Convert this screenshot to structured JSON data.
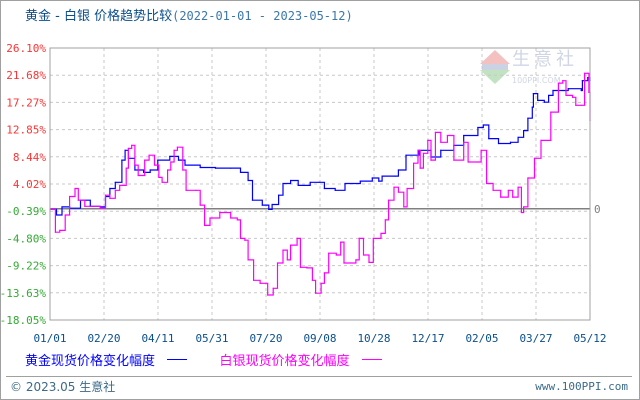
{
  "header": {
    "title": "黄金 - 白银 价格趋势比较",
    "date_range": "(2022-01-01 - 2023-05-12)"
  },
  "watermark": {
    "text": "生意社",
    "sub": "100PPI.COM"
  },
  "legend": [
    {
      "label": "黄金现货价格变化幅度",
      "color": "#0000ff"
    },
    {
      "label": "白银现货价格变化幅度",
      "color": "#ff00ff"
    }
  ],
  "footer": {
    "copyright": "© 2023.05 生意社",
    "site": "www.100PPI.com"
  },
  "chart_data": {
    "type": "line",
    "title": "黄金 - 白银 价格趋势比较",
    "xlim": [
      "2022-01-01",
      "2023-05-12"
    ],
    "ylim": [
      -18.05,
      26.1
    ],
    "x_ticks": [
      "01/01",
      "02/20",
      "04/11",
      "05/31",
      "07/20",
      "09/08",
      "10/28",
      "12/17",
      "02/05",
      "03/27",
      "05/12"
    ],
    "y_ticks": [
      "26.10%",
      "21.68%",
      "17.27%",
      "12.85%",
      "8.44%",
      "4.02%",
      "-0.39%",
      "-4.80%",
      "-9.22%",
      "-13.63%",
      "-18.05%"
    ],
    "zero_label": "0",
    "grid": true,
    "legend_position": "bottom",
    "colors": {
      "positive_tick": "#ff3333",
      "negative_tick": "#33aa33",
      "zero_line": "#808080"
    },
    "series": [
      {
        "name": "黄金现货价格变化幅度",
        "color": "#0000ff",
        "points": [
          [
            "2022-01-01",
            -0.1
          ],
          [
            "2022-01-07",
            -1.0
          ],
          [
            "2022-01-12",
            0.3
          ],
          [
            "2022-01-19",
            0.1
          ],
          [
            "2022-01-29",
            1.4
          ],
          [
            "2022-02-07",
            0.4
          ],
          [
            "2022-02-16",
            0.3
          ],
          [
            "2022-02-21",
            2.0
          ],
          [
            "2022-02-25",
            3.3
          ],
          [
            "2022-03-02",
            4.3
          ],
          [
            "2022-03-08",
            7.9
          ],
          [
            "2022-03-11",
            9.5
          ],
          [
            "2022-03-14",
            8.2
          ],
          [
            "2022-03-20",
            6.3
          ],
          [
            "2022-03-28",
            5.9
          ],
          [
            "2022-04-03",
            6.3
          ],
          [
            "2022-04-10",
            7.9
          ],
          [
            "2022-04-21",
            8.5
          ],
          [
            "2022-04-29",
            7.9
          ],
          [
            "2022-05-05",
            7.1
          ],
          [
            "2022-05-19",
            6.7
          ],
          [
            "2022-06-02",
            6.6
          ],
          [
            "2022-06-16",
            6.6
          ],
          [
            "2022-06-25",
            5.9
          ],
          [
            "2022-07-02",
            4.6
          ],
          [
            "2022-07-06",
            1.4
          ],
          [
            "2022-07-15",
            0.6
          ],
          [
            "2022-07-21",
            -0.1
          ],
          [
            "2022-07-24",
            0.7
          ],
          [
            "2022-07-30",
            2.2
          ],
          [
            "2022-08-03",
            4.1
          ],
          [
            "2022-08-10",
            4.6
          ],
          [
            "2022-08-17",
            3.8
          ],
          [
            "2022-08-28",
            4.3
          ],
          [
            "2022-09-05",
            4.3
          ],
          [
            "2022-09-10",
            3.3
          ],
          [
            "2022-09-20",
            3.0
          ],
          [
            "2022-09-29",
            4.1
          ],
          [
            "2022-10-13",
            4.5
          ],
          [
            "2022-10-24",
            5.0
          ],
          [
            "2022-10-30",
            4.5
          ],
          [
            "2022-11-02",
            5.3
          ],
          [
            "2022-11-14",
            5.3
          ],
          [
            "2022-11-17",
            6.3
          ],
          [
            "2022-11-24",
            8.7
          ],
          [
            "2022-12-06",
            9.5
          ],
          [
            "2022-12-17",
            8.4
          ],
          [
            "2022-12-26",
            9.5
          ],
          [
            "2023-01-07",
            10.3
          ],
          [
            "2023-01-16",
            11.9
          ],
          [
            "2023-01-29",
            13.2
          ],
          [
            "2023-02-03",
            13.6
          ],
          [
            "2023-02-08",
            11.4
          ],
          [
            "2023-02-17",
            10.6
          ],
          [
            "2023-02-28",
            10.8
          ],
          [
            "2023-03-07",
            11.6
          ],
          [
            "2023-03-12",
            12.7
          ],
          [
            "2023-03-16",
            14.7
          ],
          [
            "2023-03-20",
            16.5
          ],
          [
            "2023-03-21",
            18.7
          ],
          [
            "2023-03-25",
            17.6
          ],
          [
            "2023-03-31",
            17.3
          ],
          [
            "2023-04-04",
            18.4
          ],
          [
            "2023-04-08",
            19.2
          ],
          [
            "2023-04-22",
            19.5
          ],
          [
            "2023-05-04",
            19.2
          ],
          [
            "2023-05-05",
            20.8
          ],
          [
            "2023-05-10",
            21.3
          ],
          [
            "2023-05-12",
            20.8
          ]
        ]
      },
      {
        "name": "白银现货价格变化幅度",
        "color": "#ff00ff",
        "points": [
          [
            "2022-01-01",
            -0.1
          ],
          [
            "2022-01-06",
            -3.8
          ],
          [
            "2022-01-10",
            -3.5
          ],
          [
            "2022-01-15",
            -1.0
          ],
          [
            "2022-01-19",
            2.0
          ],
          [
            "2022-01-24",
            3.3
          ],
          [
            "2022-01-27",
            1.4
          ],
          [
            "2022-02-02",
            0.4
          ],
          [
            "2022-02-16",
            0.1
          ],
          [
            "2022-02-21",
            2.2
          ],
          [
            "2022-02-25",
            1.7
          ],
          [
            "2022-03-02",
            3.0
          ],
          [
            "2022-03-06",
            3.8
          ],
          [
            "2022-03-12",
            6.6
          ],
          [
            "2022-03-14",
            9.8
          ],
          [
            "2022-03-17",
            10.3
          ],
          [
            "2022-03-20",
            7.1
          ],
          [
            "2022-03-23",
            5.4
          ],
          [
            "2022-03-29",
            7.9
          ],
          [
            "2022-04-02",
            8.7
          ],
          [
            "2022-04-07",
            7.1
          ],
          [
            "2022-04-11",
            5.1
          ],
          [
            "2022-04-14",
            4.3
          ],
          [
            "2022-04-19",
            6.3
          ],
          [
            "2022-04-22",
            7.6
          ],
          [
            "2022-04-25",
            9.5
          ],
          [
            "2022-04-28",
            10.0
          ],
          [
            "2022-05-03",
            6.3
          ],
          [
            "2022-05-06",
            3.0
          ],
          [
            "2022-05-15",
            3.0
          ],
          [
            "2022-05-19",
            0.6
          ],
          [
            "2022-05-23",
            -2.7
          ],
          [
            "2022-05-28",
            -1.5
          ],
          [
            "2022-06-06",
            -0.6
          ],
          [
            "2022-06-16",
            -1.5
          ],
          [
            "2022-06-22",
            -1.8
          ],
          [
            "2022-06-25",
            -4.8
          ],
          [
            "2022-06-29",
            -5.1
          ],
          [
            "2022-07-02",
            -8.3
          ],
          [
            "2022-07-07",
            -11.6
          ],
          [
            "2022-07-13",
            -12.1
          ],
          [
            "2022-07-20",
            -14.0
          ],
          [
            "2022-07-25",
            -12.9
          ],
          [
            "2022-07-29",
            -8.8
          ],
          [
            "2022-08-03",
            -6.7
          ],
          [
            "2022-08-07",
            -8.3
          ],
          [
            "2022-08-10",
            -5.9
          ],
          [
            "2022-08-16",
            -4.8
          ],
          [
            "2022-08-19",
            -9.5
          ],
          [
            "2022-08-25",
            -9.6
          ],
          [
            "2022-08-30",
            -11.6
          ],
          [
            "2022-09-02",
            -13.7
          ],
          [
            "2022-09-07",
            -12.1
          ],
          [
            "2022-09-10",
            -10.4
          ],
          [
            "2022-09-14",
            -7.2
          ],
          [
            "2022-09-21",
            -7.5
          ],
          [
            "2022-09-25",
            -5.4
          ],
          [
            "2022-09-28",
            -8.8
          ],
          [
            "2022-10-09",
            -8.3
          ],
          [
            "2022-10-12",
            -4.8
          ],
          [
            "2022-10-16",
            -7.5
          ],
          [
            "2022-10-21",
            -8.7
          ],
          [
            "2022-10-25",
            -4.8
          ],
          [
            "2022-11-01",
            -4.0
          ],
          [
            "2022-11-05",
            -1.8
          ],
          [
            "2022-11-08",
            1.4
          ],
          [
            "2022-11-13",
            3.5
          ],
          [
            "2022-11-17",
            2.7
          ],
          [
            "2022-11-22",
            0.3
          ],
          [
            "2022-11-25",
            3.3
          ],
          [
            "2022-12-01",
            7.4
          ],
          [
            "2022-12-05",
            9.5
          ],
          [
            "2022-12-07",
            6.6
          ],
          [
            "2022-12-10",
            9.0
          ],
          [
            "2022-12-14",
            11.1
          ],
          [
            "2022-12-17",
            7.9
          ],
          [
            "2022-12-21",
            12.4
          ],
          [
            "2022-12-26",
            10.8
          ],
          [
            "2023-01-01",
            11.9
          ],
          [
            "2023-01-07",
            7.9
          ],
          [
            "2023-01-16",
            10.8
          ],
          [
            "2023-01-20",
            7.6
          ],
          [
            "2023-01-29",
            7.6
          ],
          [
            "2023-02-01",
            9.5
          ],
          [
            "2023-02-06",
            4.1
          ],
          [
            "2023-02-12",
            3.0
          ],
          [
            "2023-02-19",
            1.9
          ],
          [
            "2023-02-26",
            3.0
          ],
          [
            "2023-03-02",
            1.9
          ],
          [
            "2023-03-07",
            3.5
          ],
          [
            "2023-03-10",
            -0.6
          ],
          [
            "2023-03-12",
            0.3
          ],
          [
            "2023-03-16",
            5.0
          ],
          [
            "2023-03-22",
            8.2
          ],
          [
            "2023-03-28",
            11.1
          ],
          [
            "2023-04-06",
            15.7
          ],
          [
            "2023-04-13",
            20.4
          ],
          [
            "2023-04-17",
            20.8
          ],
          [
            "2023-04-20",
            18.4
          ],
          [
            "2023-04-26",
            18.1
          ],
          [
            "2023-04-29",
            16.8
          ],
          [
            "2023-05-04",
            16.8
          ],
          [
            "2023-05-07",
            22.0
          ],
          [
            "2023-05-10",
            22.0
          ],
          [
            "2023-05-11",
            18.9
          ],
          [
            "2023-05-12",
            14.3
          ]
        ]
      }
    ]
  }
}
